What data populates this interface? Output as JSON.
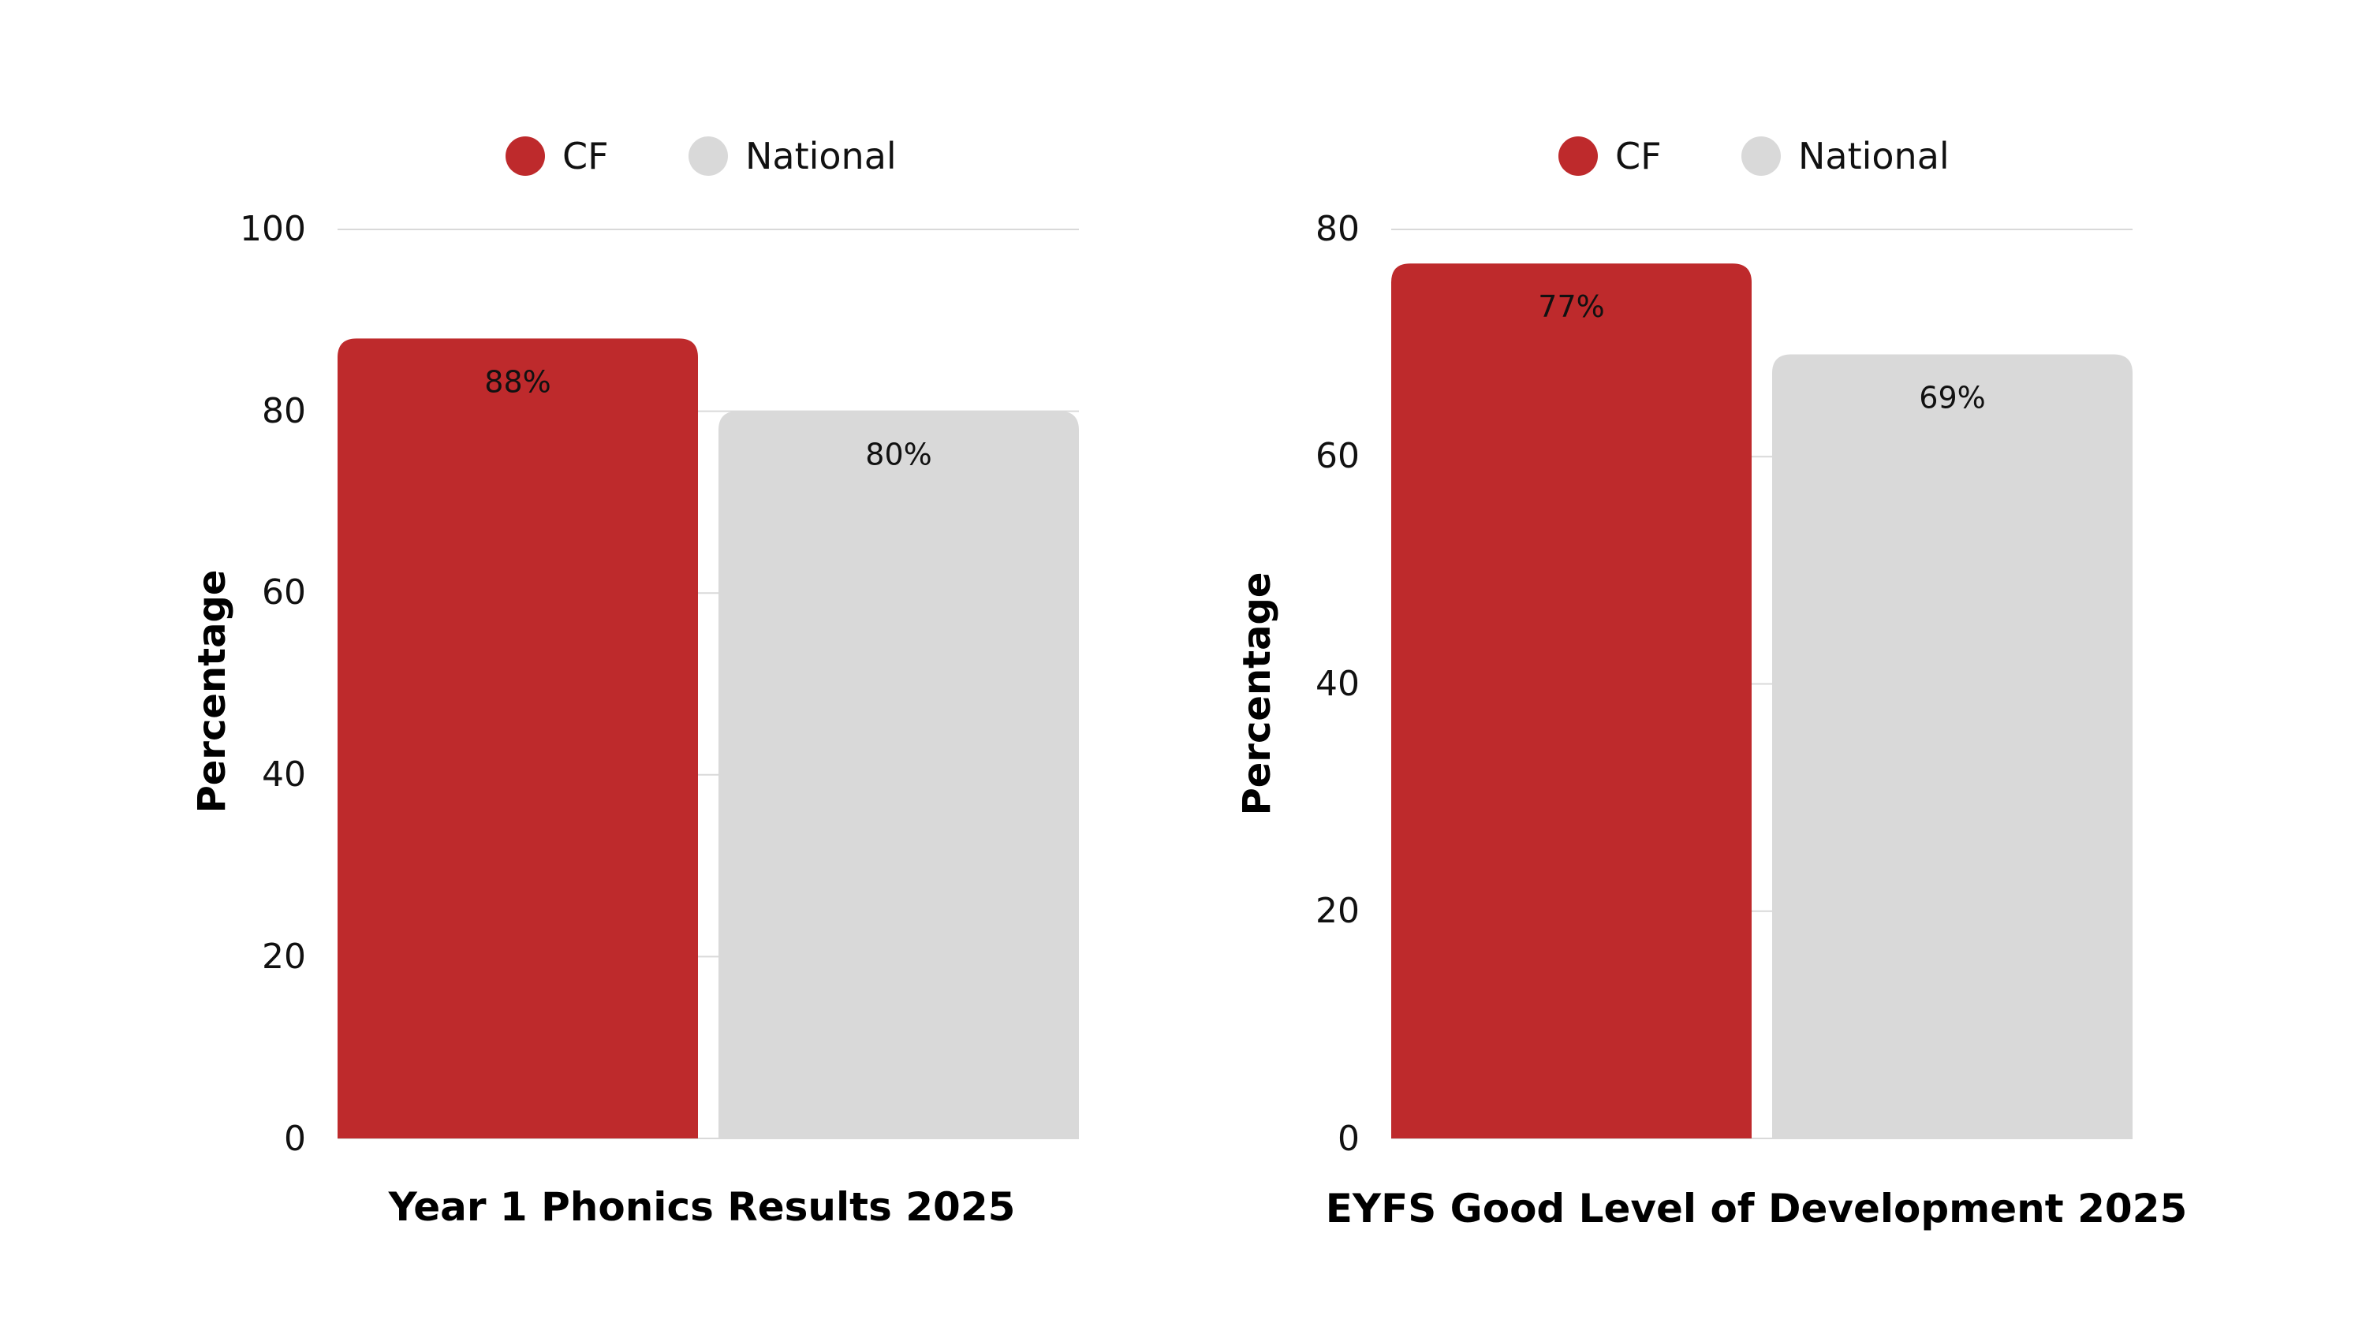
{
  "chart_data": [
    {
      "type": "bar",
      "title": "Year 1 Phonics Results 2025",
      "xlabel": "Year 1 Phonics Results 2025",
      "ylabel": "Percentage",
      "ylim": [
        0,
        100
      ],
      "yticks": [
        "0",
        "20",
        "40",
        "60",
        "80",
        "100"
      ],
      "categories": [
        "CF",
        "National"
      ],
      "values": [
        88,
        80
      ],
      "data_labels": [
        "88%",
        "80%"
      ],
      "colors": [
        "#be2a2c",
        "#d9d9d9"
      ],
      "legend": [
        {
          "name": "CF",
          "color": "#be2a2c"
        },
        {
          "name": "National",
          "color": "#d9d9d9"
        }
      ],
      "legend_position": "top-center",
      "grid": true
    },
    {
      "type": "bar",
      "title": "EYFS Good Level of Development 2025",
      "xlabel": "EYFS Good Level of Development 2025",
      "ylabel": "Percentage",
      "ylim": [
        0,
        80
      ],
      "yticks": [
        "0",
        "20",
        "40",
        "60",
        "80"
      ],
      "categories": [
        "CF",
        "National"
      ],
      "values": [
        77,
        69
      ],
      "data_labels": [
        "77%",
        "69%"
      ],
      "colors": [
        "#be2a2c",
        "#d9d9d9"
      ],
      "legend": [
        {
          "name": "CF",
          "color": "#be2a2c"
        },
        {
          "name": "National",
          "color": "#d9d9d9"
        }
      ],
      "legend_position": "top-center",
      "grid": true
    }
  ]
}
